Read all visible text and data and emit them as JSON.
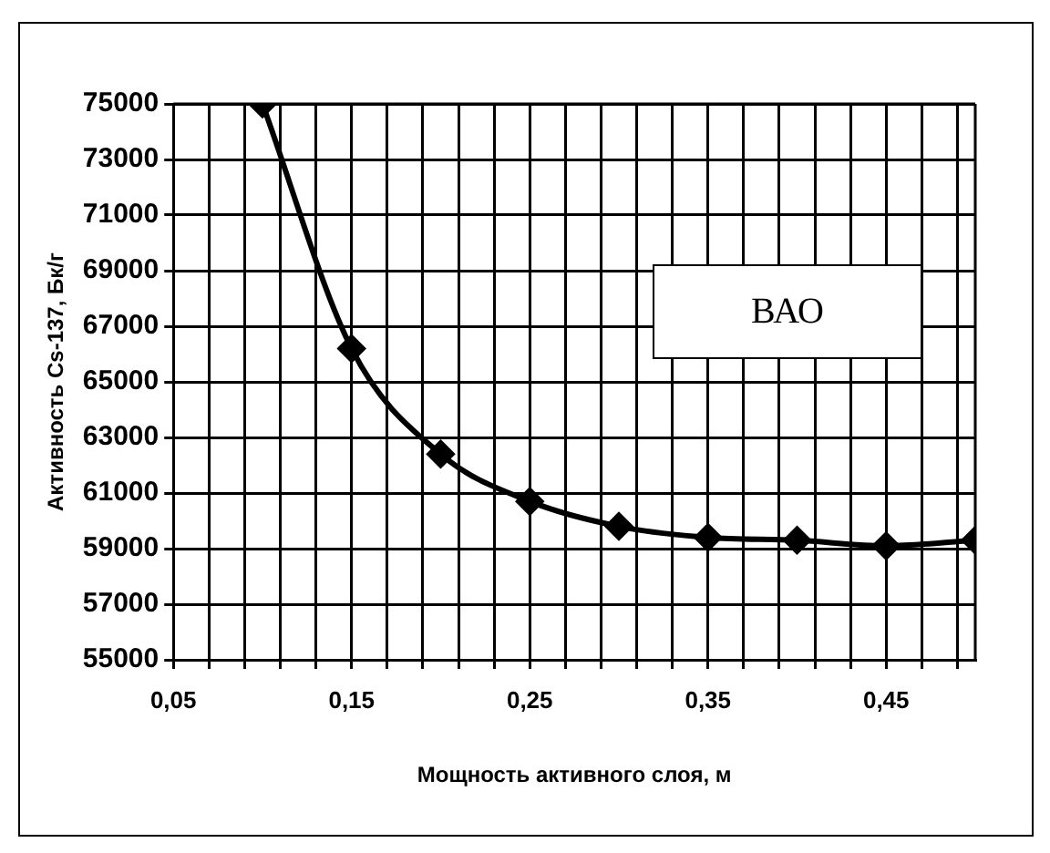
{
  "chart_data": {
    "type": "line",
    "xlabel": "Мощность активного слоя, м",
    "ylabel": "Активность Cs-137, Бк/г",
    "annotations": [
      "ВАО"
    ],
    "x": [
      0.1,
      0.15,
      0.2,
      0.25,
      0.3,
      0.35,
      0.4,
      0.45,
      0.5
    ],
    "series": [
      {
        "color": "#000000",
        "values": [
          75000,
          66200,
          62400,
          60700,
          59800,
          59400,
          59300,
          59100,
          59300
        ]
      }
    ],
    "xlim": [
      0.05,
      0.5
    ],
    "xticks": [
      {
        "value": 0.05,
        "label": "0,05"
      },
      {
        "value": 0.07,
        "label": null
      },
      {
        "value": 0.09,
        "label": null
      },
      {
        "value": 0.11,
        "label": null
      },
      {
        "value": 0.13,
        "label": null
      },
      {
        "value": 0.15,
        "label": "0,15"
      },
      {
        "value": 0.17,
        "label": null
      },
      {
        "value": 0.19,
        "label": null
      },
      {
        "value": 0.21,
        "label": null
      },
      {
        "value": 0.23,
        "label": null
      },
      {
        "value": 0.25,
        "label": "0,25"
      },
      {
        "value": 0.27,
        "label": null
      },
      {
        "value": 0.29,
        "label": null
      },
      {
        "value": 0.31,
        "label": null
      },
      {
        "value": 0.33,
        "label": null
      },
      {
        "value": 0.35,
        "label": "0,35"
      },
      {
        "value": 0.37,
        "label": null
      },
      {
        "value": 0.39,
        "label": null
      },
      {
        "value": 0.41,
        "label": null
      },
      {
        "value": 0.43,
        "label": null
      },
      {
        "value": 0.45,
        "label": "0,45"
      },
      {
        "value": 0.47,
        "label": null
      },
      {
        "value": 0.49,
        "label": null
      }
    ],
    "ylim": [
      55000,
      75000
    ],
    "yticks": [
      55000,
      57000,
      59000,
      61000,
      63000,
      65000,
      67000,
      69000,
      71000,
      73000,
      75000
    ],
    "grid": true,
    "legend": false,
    "marker": "diamond",
    "line_style": "solid"
  }
}
